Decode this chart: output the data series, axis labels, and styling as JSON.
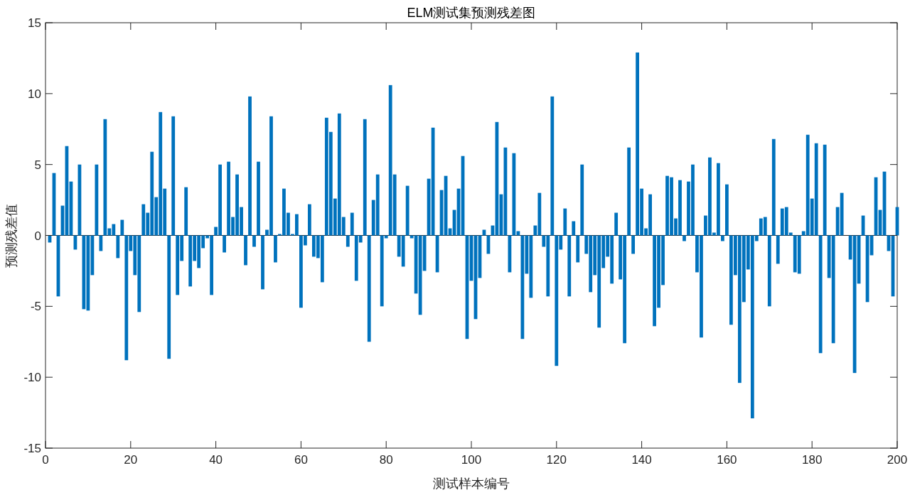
{
  "chart_data": {
    "type": "bar",
    "title": "ELM测试集预测残差图",
    "xlabel": "测试样本编号",
    "ylabel": "预测残差值",
    "x": [
      1,
      2,
      3,
      4,
      5,
      6,
      7,
      8,
      9,
      10,
      11,
      12,
      13,
      14,
      15,
      16,
      17,
      18,
      19,
      20,
      21,
      22,
      23,
      24,
      25,
      26,
      27,
      28,
      29,
      30,
      31,
      32,
      33,
      34,
      35,
      36,
      37,
      38,
      39,
      40,
      41,
      42,
      43,
      44,
      45,
      46,
      47,
      48,
      49,
      50,
      51,
      52,
      53,
      54,
      55,
      56,
      57,
      58,
      59,
      60,
      61,
      62,
      63,
      64,
      65,
      66,
      67,
      68,
      69,
      70,
      71,
      72,
      73,
      74,
      75,
      76,
      77,
      78,
      79,
      80,
      81,
      82,
      83,
      84,
      85,
      86,
      87,
      88,
      89,
      90,
      91,
      92,
      93,
      94,
      95,
      96,
      97,
      98,
      99,
      100,
      101,
      102,
      103,
      104,
      105,
      106,
      107,
      108,
      109,
      110,
      111,
      112,
      113,
      114,
      115,
      116,
      117,
      118,
      119,
      120,
      121,
      122,
      123,
      124,
      125,
      126,
      127,
      128,
      129,
      130,
      131,
      132,
      133,
      134,
      135,
      136,
      137,
      138,
      139,
      140,
      141,
      142,
      143,
      144,
      145,
      146,
      147,
      148,
      149,
      150,
      151,
      152,
      153,
      154,
      155,
      156,
      157,
      158,
      159,
      160,
      161,
      162,
      163,
      164,
      165,
      166,
      167,
      168,
      169,
      170,
      171,
      172,
      173,
      174,
      175,
      176,
      177,
      178,
      179,
      180,
      181,
      182,
      183,
      184,
      185,
      186,
      187,
      188,
      189,
      190,
      191,
      192,
      193,
      194,
      195,
      196,
      197,
      198,
      199,
      200
    ],
    "values": [
      -0.5,
      4.4,
      -4.3,
      2.1,
      6.3,
      3.8,
      -1.0,
      5.0,
      -5.2,
      -5.3,
      -2.8,
      5.0,
      -1.1,
      8.2,
      0.5,
      0.8,
      -1.6,
      1.1,
      -8.8,
      -1.1,
      -2.8,
      -5.4,
      2.2,
      1.6,
      5.9,
      2.7,
      8.7,
      3.3,
      -8.7,
      8.4,
      -4.2,
      -1.8,
      3.4,
      -3.6,
      -1.8,
      -2.3,
      -0.9,
      -0.2,
      -4.2,
      0.6,
      5.0,
      -1.2,
      5.2,
      1.3,
      4.3,
      2.0,
      -2.1,
      9.8,
      -0.8,
      5.2,
      -3.8,
      0.4,
      8.4,
      -1.9,
      0.1,
      3.3,
      1.6,
      0.1,
      1.5,
      -5.1,
      -0.7,
      2.2,
      -1.5,
      -1.6,
      -3.3,
      8.3,
      7.3,
      2.6,
      8.6,
      1.3,
      -0.8,
      1.6,
      -3.2,
      -0.5,
      8.2,
      -7.5,
      2.5,
      4.3,
      -5.0,
      -0.2,
      10.6,
      4.3,
      -1.5,
      -2.2,
      3.5,
      -0.2,
      -4.1,
      -5.6,
      -2.5,
      4.0,
      7.6,
      -2.6,
      3.2,
      4.2,
      0.5,
      1.8,
      3.3,
      5.6,
      -7.3,
      -3.2,
      -5.9,
      -3.0,
      0.4,
      -1.3,
      0.7,
      8.0,
      2.9,
      6.2,
      -2.6,
      5.8,
      0.3,
      -7.3,
      -2.7,
      -4.4,
      0.7,
      3.0,
      -0.8,
      -4.3,
      9.8,
      -9.2,
      -1.0,
      1.9,
      -4.3,
      1.0,
      -1.9,
      5.0,
      -1.3,
      -4.0,
      -2.8,
      -6.5,
      -2.3,
      -1.5,
      -3.4,
      1.6,
      -3.1,
      -7.6,
      6.2,
      -1.3,
      12.9,
      3.3,
      0.5,
      2.9,
      -6.4,
      -5.1,
      -3.5,
      4.2,
      4.1,
      1.2,
      3.9,
      -0.4,
      3.8,
      5.0,
      -2.6,
      -7.2,
      1.4,
      5.5,
      0.2,
      5.1,
      -0.4,
      3.6,
      -6.3,
      -2.8,
      -10.4,
      -4.7,
      -2.4,
      -12.9,
      -0.4,
      1.2,
      1.3,
      -5.0,
      6.8,
      -2.0,
      1.9,
      2.0,
      0.2,
      -2.6,
      -2.7,
      0.3,
      7.1,
      2.6,
      6.5,
      -8.3,
      6.4,
      -3.0,
      -7.6,
      2.0,
      3.0,
      0,
      -1.7,
      -9.7,
      -3.4,
      1.4,
      -4.7,
      -1.4,
      4.1,
      1.8,
      4.5,
      -1.1,
      -4.3,
      2.0
    ],
    "color": "#0072bd",
    "xlim": [
      0,
      200
    ],
    "xticks": [
      0,
      20,
      40,
      60,
      80,
      100,
      120,
      140,
      160,
      180,
      200
    ],
    "ylim": [
      -15,
      15
    ],
    "yticks": [
      -15,
      -10,
      -5,
      0,
      5,
      10,
      15
    ],
    "ref_lines": [
      {
        "axis": "y",
        "value": 0,
        "color": "#262626"
      }
    ]
  }
}
